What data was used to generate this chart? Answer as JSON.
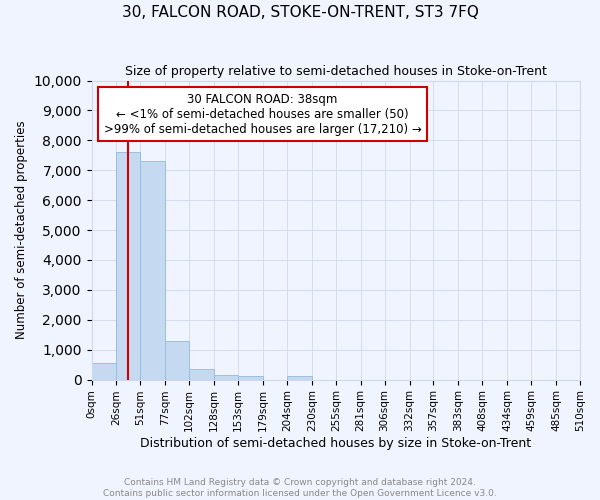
{
  "title": "30, FALCON ROAD, STOKE-ON-TRENT, ST3 7FQ",
  "subtitle": "Size of property relative to semi-detached houses in Stoke-on-Trent",
  "xlabel": "Distribution of semi-detached houses by size in Stoke-on-Trent",
  "ylabel": "Number of semi-detached properties",
  "footnote1": "Contains HM Land Registry data © Crown copyright and database right 2024.",
  "footnote2": "Contains public sector information licensed under the Open Government Licence v3.0.",
  "annotation_line1": "30 FALCON ROAD: 38sqm",
  "annotation_line2": "← <1% of semi-detached houses are smaller (50)",
  "annotation_line3": ">99% of semi-detached houses are larger (17,210) →",
  "property_size": 38,
  "bar_color": "#c5d9f0",
  "bar_edge_color": "#9bbfe0",
  "annotation_box_color": "#ffffff",
  "annotation_box_edge": "#cc0000",
  "vline_color": "#cc0000",
  "bin_edges": [
    0,
    26,
    51,
    77,
    102,
    128,
    153,
    179,
    204,
    230,
    255,
    281,
    306,
    332,
    357,
    383,
    408,
    434,
    459,
    485,
    510
  ],
  "counts": [
    550,
    7600,
    7300,
    1300,
    350,
    170,
    130,
    0,
    130,
    0,
    0,
    0,
    0,
    0,
    0,
    0,
    0,
    0,
    0,
    0
  ],
  "ylim": [
    0,
    10000
  ],
  "yticks": [
    0,
    1000,
    2000,
    3000,
    4000,
    5000,
    6000,
    7000,
    8000,
    9000,
    10000
  ],
  "background_color": "#f0f4ff",
  "grid_color": "#d0d8ee",
  "title_fontsize": 11,
  "subtitle_fontsize": 9
}
